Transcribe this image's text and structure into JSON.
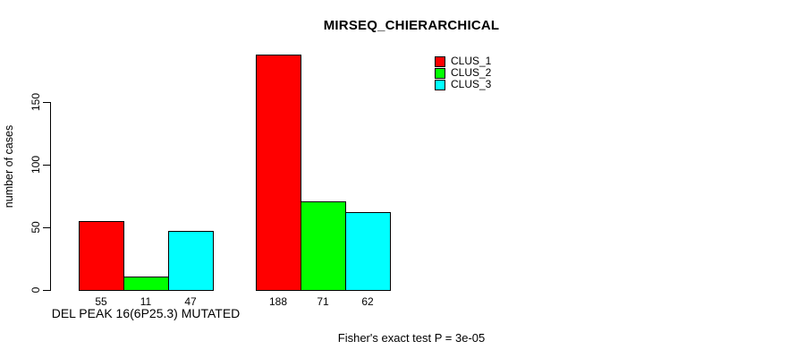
{
  "chart_data": {
    "type": "bar",
    "title": "MIRSEQ_CHIERARCHICAL",
    "ylabel": "number of cases",
    "xlabel": "",
    "ylim": [
      0,
      150
    ],
    "yticks": [
      0,
      50,
      100,
      150
    ],
    "grid": false,
    "legend_position": "top-right",
    "categories": [
      "DEL PEAK 16(6P25.3) MUTATED",
      ""
    ],
    "series": [
      {
        "name": "CLUS_1",
        "color": "#ff0000",
        "values": [
          55,
          188
        ]
      },
      {
        "name": "CLUS_2",
        "color": "#00ff00",
        "values": [
          11,
          71
        ]
      },
      {
        "name": "CLUS_3",
        "color": "#00ffff",
        "values": [
          47,
          62
        ]
      }
    ],
    "bar_value_labels": [
      [
        55,
        11,
        47
      ],
      [
        188,
        71,
        62
      ]
    ],
    "footnote": "Fisher's exact test P = 3e-05",
    "axis_color": "#000000",
    "background_color": "#ffffff"
  }
}
